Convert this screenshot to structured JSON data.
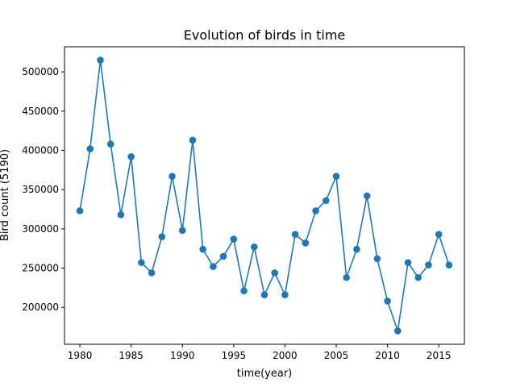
{
  "chart_data": {
    "type": "line",
    "title": "Evolution of birds in time",
    "xlabel": "time(year)",
    "ylabel": "Bird count (5190)",
    "xlim": [
      1978.5,
      2017.5
    ],
    "ylim": [
      153000,
      532000
    ],
    "xticks": [
      1980,
      1985,
      1990,
      1995,
      2000,
      2005,
      2010,
      2015
    ],
    "yticks": [
      200000,
      250000,
      300000,
      350000,
      400000,
      450000,
      500000
    ],
    "grid": false,
    "series": [
      {
        "color": "#1f77b4",
        "marker": "circle",
        "x": [
          1980,
          1981,
          1982,
          1983,
          1984,
          1985,
          1986,
          1987,
          1988,
          1989,
          1990,
          1991,
          1992,
          1993,
          1994,
          1995,
          1996,
          1997,
          1998,
          1999,
          2000,
          2001,
          2002,
          2003,
          2004,
          2005,
          2006,
          2007,
          2008,
          2009,
          2010,
          2011,
          2012,
          2013,
          2014,
          2015,
          2016
        ],
        "y": [
          323000,
          402000,
          515000,
          408000,
          318000,
          392000,
          257000,
          244000,
          290000,
          367000,
          298000,
          413000,
          274000,
          252000,
          265000,
          287000,
          221000,
          277000,
          216000,
          244000,
          216000,
          293000,
          282000,
          323000,
          336000,
          367000,
          238000,
          274000,
          342000,
          262000,
          208000,
          170000,
          257000,
          238000,
          254000,
          293000,
          254000
        ]
      }
    ]
  }
}
